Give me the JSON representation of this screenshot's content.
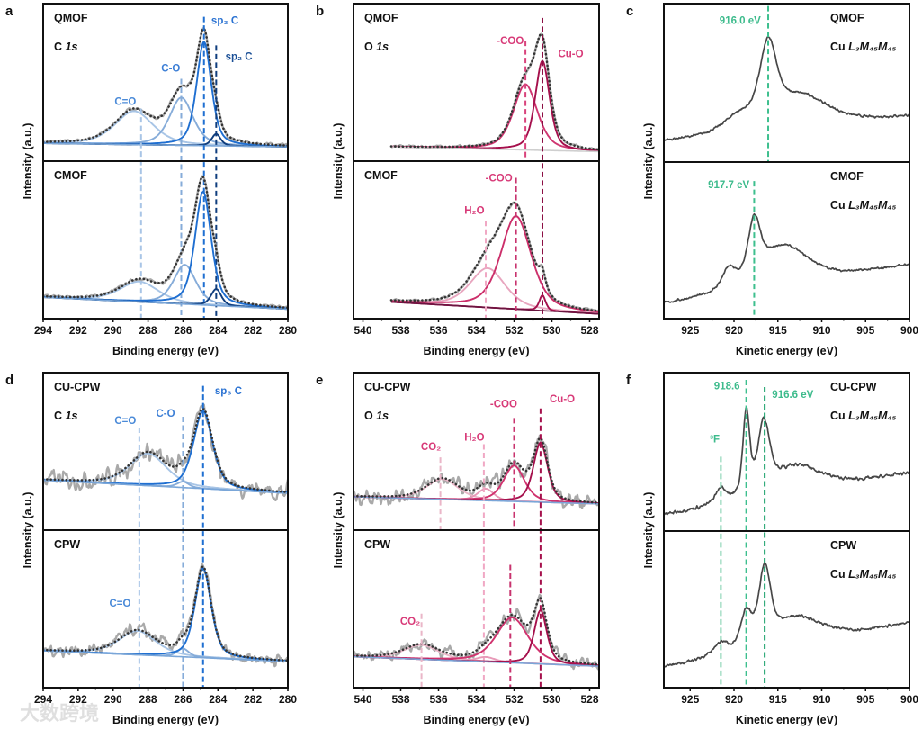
{
  "watermark": "大数跨境",
  "ylim": [
    -0.12,
    1.2
  ],
  "chart_data": [
    {
      "panel": "a",
      "type": "line",
      "mode": "fit",
      "xlabel": "Binding energy (eV)",
      "ylabel": "Intensity (a.u.)",
      "xlim": [
        294,
        280
      ],
      "xticks": [
        294,
        292,
        290,
        288,
        286,
        284,
        282,
        280
      ],
      "data_range": [
        294,
        280
      ],
      "label_side": "left",
      "subplots": [
        {
          "sample": "QMOF",
          "core_el": "C ",
          "core_orb": "1s",
          "bg": [
            0.03,
            0.0
          ],
          "noise": 0.012,
          "peaks": [
            {
              "name": "C=O",
              "center": 288.8,
              "height": 0.28,
              "fwhm": 2.6,
              "color": "#a8c5e6"
            },
            {
              "name": "C-O",
              "center": 286.1,
              "height": 0.4,
              "fwhm": 1.6,
              "color": "#86acd9"
            },
            {
              "name": "sp3 C",
              "center": 284.8,
              "height": 0.87,
              "fwhm": 1.0,
              "color": "#1f6fd1"
            },
            {
              "name": "sp2 C",
              "center": 284.1,
              "height": 0.1,
              "fwhm": 0.6,
              "color": "#0f3d7d"
            }
          ],
          "annotations": [
            {
              "text": "C=O",
              "x": 289.3,
              "y": 0.38,
              "color": "#4a8ad8"
            },
            {
              "text": "C-O",
              "x": 286.7,
              "y": 0.66,
              "color": "#3d7fd6"
            },
            {
              "text": "sp₃ C",
              "x": 283.6,
              "y": 1.06,
              "color": "#2a72d2"
            },
            {
              "text": "sp₂ C",
              "x": 282.8,
              "y": 0.76,
              "color": "#1a4f96"
            }
          ],
          "vlines": [
            {
              "x": 288.4,
              "from": 0.32,
              "to": "panel",
              "color": "#a8c5e6"
            },
            {
              "x": 286.1,
              "from": 0.57,
              "to": "panel",
              "color": "#86acd9"
            },
            {
              "x": 284.8,
              "from": 1.09,
              "to": "panel",
              "color": "#1f6fd1"
            },
            {
              "x": 284.1,
              "from": 0.85,
              "to": "panel",
              "color": "#0f3d7d"
            }
          ]
        },
        {
          "sample": "CMOF",
          "bg": [
            0.06,
            -0.04
          ],
          "noise": 0.012,
          "peaks": [
            {
              "name": "C=O",
              "center": 288.5,
              "height": 0.17,
              "fwhm": 2.6,
              "color": "#a8c5e6"
            },
            {
              "name": "C-O",
              "center": 285.9,
              "height": 0.33,
              "fwhm": 1.5,
              "color": "#86acd9"
            },
            {
              "name": "sp3 C",
              "center": 284.85,
              "height": 0.95,
              "fwhm": 1.1,
              "color": "#1f6fd1"
            },
            {
              "name": "sp2 C",
              "center": 284.1,
              "height": 0.14,
              "fwhm": 0.7,
              "color": "#0f3d7d"
            }
          ],
          "annotations": [],
          "vlines": []
        }
      ]
    },
    {
      "panel": "b",
      "type": "line",
      "mode": "fit",
      "xlabel": "Binding energy (eV)",
      "ylabel": "Intensity (a.u.)",
      "xlim": [
        540.5,
        527.5
      ],
      "xticks": [
        540,
        538,
        536,
        534,
        532,
        530,
        528
      ],
      "data_range": [
        538.5,
        527.5
      ],
      "label_side": "left",
      "subplots": [
        {
          "sample": "QMOF",
          "core_el": "O ",
          "core_orb": "1s",
          "bg": [
            0.0,
            -0.04
          ],
          "bg_color": "#cfcfcf",
          "noise": 0.01,
          "peaks": [
            {
              "name": "-COO",
              "center": 531.4,
              "height": 0.55,
              "fwhm": 1.5,
              "color": "#cf3570"
            },
            {
              "name": "Cu-O",
              "center": 530.5,
              "height": 0.75,
              "fwhm": 0.9,
              "color": "#a5104c"
            }
          ],
          "annotations": [
            {
              "text": "-COO",
              "x": 532.2,
              "y": 0.89,
              "color": "#d83a78"
            },
            {
              "text": "Cu-O",
              "x": 529.0,
              "y": 0.78,
              "color": "#d83a78"
            }
          ],
          "vlines": [
            {
              "x": 531.4,
              "from": 0.89,
              "to": "sub",
              "color": "#d9437c"
            },
            {
              "x": 530.5,
              "from": 1.08,
              "to": "panel",
              "color": "#8c0f44"
            }
          ]
        },
        {
          "sample": "CMOF",
          "bg": [
            0.02,
            -0.08
          ],
          "bg_color": "#6a1540",
          "noise": 0.01,
          "peaks": [
            {
              "name": "H2O",
              "center": 533.4,
              "height": 0.33,
              "fwhm": 2.2,
              "color": "#e8a6bf"
            },
            {
              "name": "-COO",
              "center": 531.9,
              "height": 0.78,
              "fwhm": 1.9,
              "color": "#cc2f6a"
            },
            {
              "name": "Cu-O",
              "center": 530.5,
              "height": 0.13,
              "fwhm": 0.4,
              "color": "#a5104c"
            }
          ],
          "annotations": [
            {
              "text": "-COO",
              "x": 532.8,
              "y": 1.06,
              "color": "#d83a78"
            },
            {
              "text": "H₂O",
              "x": 534.1,
              "y": 0.79,
              "color": "#d83a78"
            }
          ],
          "vlines": [
            {
              "x": 531.9,
              "from": 1.06,
              "to": "sub",
              "color": "#c8336e"
            },
            {
              "x": 533.5,
              "from": 0.7,
              "to": "sub",
              "color": "#f0a8c4"
            }
          ]
        }
      ]
    },
    {
      "panel": "c",
      "type": "line",
      "mode": "auger",
      "xlabel": "Kinetic energy (eV)",
      "ylabel": "Intensity (a.u.)",
      "xlim": [
        928,
        900
      ],
      "xticks": [
        925,
        920,
        915,
        910,
        905,
        900
      ],
      "data_range": [
        928,
        900
      ],
      "label_side": "right",
      "subplots": [
        {
          "sample": "QMOF",
          "core_el": "Cu ",
          "core_orb": "L₃M₄₅M₄₅",
          "bg": [
            0.05,
            0.26
          ],
          "noise": 0.008,
          "peaks": [
            {
              "center": 916.1,
              "height": 0.62,
              "fwhm": 2.3
            },
            {
              "center": 912.5,
              "height": 0.26,
              "fwhm": 7.5
            },
            {
              "center": 919.5,
              "height": 0.12,
              "fwhm": 4.0
            }
          ],
          "annotations": [
            {
              "text": "916.0 eV",
              "x": 919.3,
              "y": 1.06,
              "color": "#3dbb8c"
            }
          ],
          "vlines": [
            {
              "x": 916.1,
              "from": 1.18,
              "to": "sub",
              "color": "#3dbf8e"
            }
          ]
        },
        {
          "sample": "CMOF",
          "core_el": "Cu ",
          "core_orb": "L₃M₄₅M₄₅",
          "bg": [
            0.0,
            0.33
          ],
          "noise": 0.008,
          "peaks": [
            {
              "center": 917.7,
              "height": 0.45,
              "fwhm": 1.6
            },
            {
              "center": 914.5,
              "height": 0.33,
              "fwhm": 7.0
            },
            {
              "center": 920.6,
              "height": 0.16,
              "fwhm": 1.8
            }
          ],
          "annotations": [
            {
              "text": "917.7 eV",
              "x": 920.6,
              "y": 1.01,
              "color": "#3dbb8c"
            }
          ],
          "vlines": [
            {
              "x": 917.7,
              "from": 1.04,
              "to": "sub",
              "color": "#3dbf8e"
            }
          ]
        }
      ]
    },
    {
      "panel": "d",
      "type": "line",
      "mode": "fit",
      "xlabel": "Binding energy (eV)",
      "ylabel": "Intensity (a.u.)",
      "xlim": [
        294,
        280
      ],
      "xticks": [
        294,
        292,
        290,
        288,
        286,
        284,
        282,
        280
      ],
      "data_range": [
        294,
        280
      ],
      "label_side": "left",
      "subplots": [
        {
          "sample": "CU-CPW",
          "core_el": "C ",
          "core_orb": "1s",
          "bg": [
            0.3,
            0.19
          ],
          "noise": 0.07,
          "peaks": [
            {
              "name": "C=O",
              "center": 288.0,
              "height": 0.27,
              "fwhm": 2.5,
              "color": "#a8c5e6"
            },
            {
              "name": "C-O",
              "center": 286.0,
              "height": 0.05,
              "fwhm": 0.8,
              "color": "#86acd9"
            },
            {
              "name": "sp3 C",
              "center": 284.85,
              "height": 0.65,
              "fwhm": 1.3,
              "color": "#1f6fd1"
            }
          ],
          "annotations": [
            {
              "text": "C=O",
              "x": 289.3,
              "y": 0.8,
              "color": "#4a8ad8"
            },
            {
              "text": "C-O",
              "x": 287.0,
              "y": 0.86,
              "color": "#3d7fd6"
            },
            {
              "text": "sp₃ C",
              "x": 283.4,
              "y": 1.05,
              "color": "#2a72d2"
            }
          ],
          "vlines": [
            {
              "x": 288.5,
              "from": 0.74,
              "to": "panel",
              "color": "#a8c5e6"
            },
            {
              "x": 286.0,
              "from": 0.83,
              "to": "panel",
              "color": "#86acd9"
            },
            {
              "x": 284.85,
              "from": 1.09,
              "to": "panel",
              "color": "#1f6fd1"
            }
          ]
        },
        {
          "sample": "CPW",
          "bg": [
            0.19,
            0.1
          ],
          "noise": 0.05,
          "peaks": [
            {
              "name": "C=O",
              "center": 288.6,
              "height": 0.2,
              "fwhm": 2.5,
              "color": "#a8c5e6"
            },
            {
              "name": "C-O",
              "center": 286.0,
              "height": 0.07,
              "fwhm": 0.8,
              "color": "#86acd9"
            },
            {
              "name": "sp3 C",
              "center": 284.85,
              "height": 0.75,
              "fwhm": 1.1,
              "color": "#1f6fd1"
            }
          ],
          "annotations": [
            {
              "text": "C=O",
              "x": 289.6,
              "y": 0.59,
              "color": "#4a8ad8"
            }
          ],
          "vlines": []
        }
      ]
    },
    {
      "panel": "e",
      "type": "line",
      "mode": "fit",
      "xlabel": "Binding energy (eV)",
      "ylabel": "Intensity (a.u.)",
      "xlim": [
        540.5,
        527.5
      ],
      "xticks": [
        540,
        538,
        536,
        534,
        532,
        530,
        528
      ],
      "data_range": [
        540.5,
        527.5
      ],
      "label_side": "left",
      "subplots": [
        {
          "sample": "CU-CPW",
          "core_el": "O ",
          "core_orb": "1s",
          "bg": [
            0.16,
            0.1
          ],
          "noise": 0.06,
          "peaks": [
            {
              "name": "CO2",
              "center": 535.8,
              "height": 0.17,
              "fwhm": 2.0,
              "color": "#eab6c8"
            },
            {
              "name": "H2O",
              "center": 533.5,
              "height": 0.1,
              "fwhm": 1.0,
              "color": "#e89ab8"
            },
            {
              "name": "-COO",
              "center": 532.0,
              "height": 0.3,
              "fwhm": 1.3,
              "color": "#d0326e"
            },
            {
              "name": "Cu-O",
              "center": 530.6,
              "height": 0.5,
              "fwhm": 0.9,
              "color": "#a5104c"
            }
          ],
          "annotations": [
            {
              "text": "Cu-O",
              "x": 529.45,
              "y": 0.98,
              "color": "#d83a78"
            },
            {
              "text": "-COO",
              "x": 532.55,
              "y": 0.94,
              "color": "#d83a78"
            },
            {
              "text": "H₂O",
              "x": 534.1,
              "y": 0.66,
              "color": "#d83a78"
            },
            {
              "text": "CO₂",
              "x": 536.4,
              "y": 0.58,
              "color": "#d83a78"
            }
          ],
          "vlines": [
            {
              "x": 535.9,
              "from": 0.49,
              "to": "sub",
              "color": "#eab6c8"
            },
            {
              "x": 533.6,
              "from": 0.6,
              "to": "panel",
              "color": "#f0a8c4"
            },
            {
              "x": 532.0,
              "from": 0.82,
              "to": "sub",
              "color": "#c8336e"
            },
            {
              "x": 530.6,
              "from": 0.9,
              "to": "panel",
              "color": "#a5104c"
            }
          ]
        },
        {
          "sample": "CPW",
          "bg": [
            0.14,
            0.06
          ],
          "noise": 0.05,
          "peaks": [
            {
              "name": "CO2",
              "center": 536.9,
              "height": 0.12,
              "fwhm": 2.2,
              "color": "#eab6c8"
            },
            {
              "name": "H2O",
              "center": 533.5,
              "height": 0.04,
              "fwhm": 1.2,
              "color": "#e89ab8"
            },
            {
              "name": "-COO",
              "center": 532.1,
              "height": 0.38,
              "fwhm": 2.0,
              "color": "#d0326e"
            },
            {
              "name": "Cu-O",
              "center": 530.6,
              "height": 0.45,
              "fwhm": 0.8,
              "color": "#a5104c"
            }
          ],
          "annotations": [
            {
              "text": "CO₂",
              "x": 537.5,
              "y": 0.44,
              "color": "#d83a78"
            }
          ],
          "vlines": [
            {
              "x": 536.9,
              "from": 0.5,
              "to": "sub",
              "color": "#eab6c8"
            },
            {
              "x": 532.2,
              "from": 0.91,
              "to": "sub",
              "color": "#c8336e"
            }
          ]
        }
      ]
    },
    {
      "panel": "f",
      "type": "line",
      "mode": "auger",
      "xlabel": "Kinetic energy (eV)",
      "ylabel": "Intensity (a.u.)",
      "xlim": [
        928,
        900
      ],
      "xticks": [
        925,
        920,
        915,
        910,
        905,
        900
      ],
      "data_range": [
        928,
        900
      ],
      "label_side": "right",
      "subplots": [
        {
          "sample": "CU-CPW",
          "core_el": "Cu ",
          "core_orb": "L₃M₄₅M₄₅",
          "bg": [
            0.01,
            0.36
          ],
          "noise": 0.012,
          "peaks": [
            {
              "center": 918.6,
              "height": 0.7,
              "fwhm": 0.9
            },
            {
              "center": 916.6,
              "height": 0.55,
              "fwhm": 1.6
            },
            {
              "center": 921.5,
              "height": 0.12,
              "fwhm": 1.5
            },
            {
              "center": 913.0,
              "height": 0.22,
              "fwhm": 7.0
            }
          ],
          "annotations": [
            {
              "text": "918.6",
              "x": 920.8,
              "y": 1.09,
              "color": "#3dbb8c"
            },
            {
              "text": "916.6 eV",
              "x": 913.3,
              "y": 1.02,
              "color": "#3dbb8c"
            },
            {
              "text": "³F",
              "x": 922.2,
              "y": 0.65,
              "color": "#3dbb8c"
            }
          ],
          "vlines": [
            {
              "x": 921.5,
              "from": 0.5,
              "to": "panel",
              "color": "#7fd0ad"
            },
            {
              "x": 918.6,
              "from": 1.14,
              "to": "panel",
              "color": "#3dbf8e"
            },
            {
              "x": 916.5,
              "from": 1.08,
              "to": "panel",
              "color": "#17a06a"
            }
          ]
        },
        {
          "sample": "CPW",
          "core_el": "Cu ",
          "core_orb": "L₃M₄₅M₄₅",
          "bg": [
            0.05,
            0.42
          ],
          "noise": 0.01,
          "peaks": [
            {
              "center": 916.5,
              "height": 0.6,
              "fwhm": 1.6
            },
            {
              "center": 918.6,
              "height": 0.28,
              "fwhm": 1.5
            },
            {
              "center": 921.5,
              "height": 0.1,
              "fwhm": 2.0
            },
            {
              "center": 913.0,
              "height": 0.22,
              "fwhm": 7.0
            }
          ],
          "annotations": [],
          "vlines": []
        }
      ]
    }
  ]
}
